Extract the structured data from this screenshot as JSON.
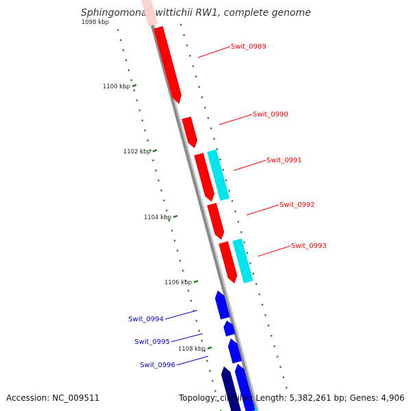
{
  "title": "Sphingomonas wittichii RW1, complete genome",
  "footer": {
    "accession": "Accession: NC_009511",
    "summary": "Topology: circular; Length: 5,382,261 bp; Genes: 4,906"
  },
  "ticks": [
    {
      "label": "1098 kbp",
      "kbp": 1098
    },
    {
      "label": "1100 kbp",
      "kbp": 1100
    },
    {
      "label": "1102 kbp",
      "kbp": 1102
    },
    {
      "label": "1104 kbp",
      "kbp": 1104
    },
    {
      "label": "1106 kbp",
      "kbp": 1106
    },
    {
      "label": "1108 kbp",
      "kbp": 1108
    }
  ],
  "genes": [
    {
      "label": "Swit_0989",
      "color": "#ff0000"
    },
    {
      "label": "Swit_0990",
      "color": "#ff0000"
    },
    {
      "label": "Swit_0991",
      "color": "#ff0000"
    },
    {
      "label": "Swit_0992",
      "color": "#ff0000"
    },
    {
      "label": "Swit_0993",
      "color": "#ff0000"
    },
    {
      "label": "Swit_0994",
      "color": "#0000cc"
    },
    {
      "label": "Swit_0995",
      "color": "#0000cc"
    },
    {
      "label": "Swit_0996",
      "color": "#0000cc"
    }
  ],
  "colors": {
    "forward_cds": "#ff0000",
    "other_feature": "#00e5ee",
    "reverse_cds": "#0000ff",
    "reverse_dark": "#000080",
    "backbone": "#888888",
    "tick": "#1a7a1a"
  }
}
